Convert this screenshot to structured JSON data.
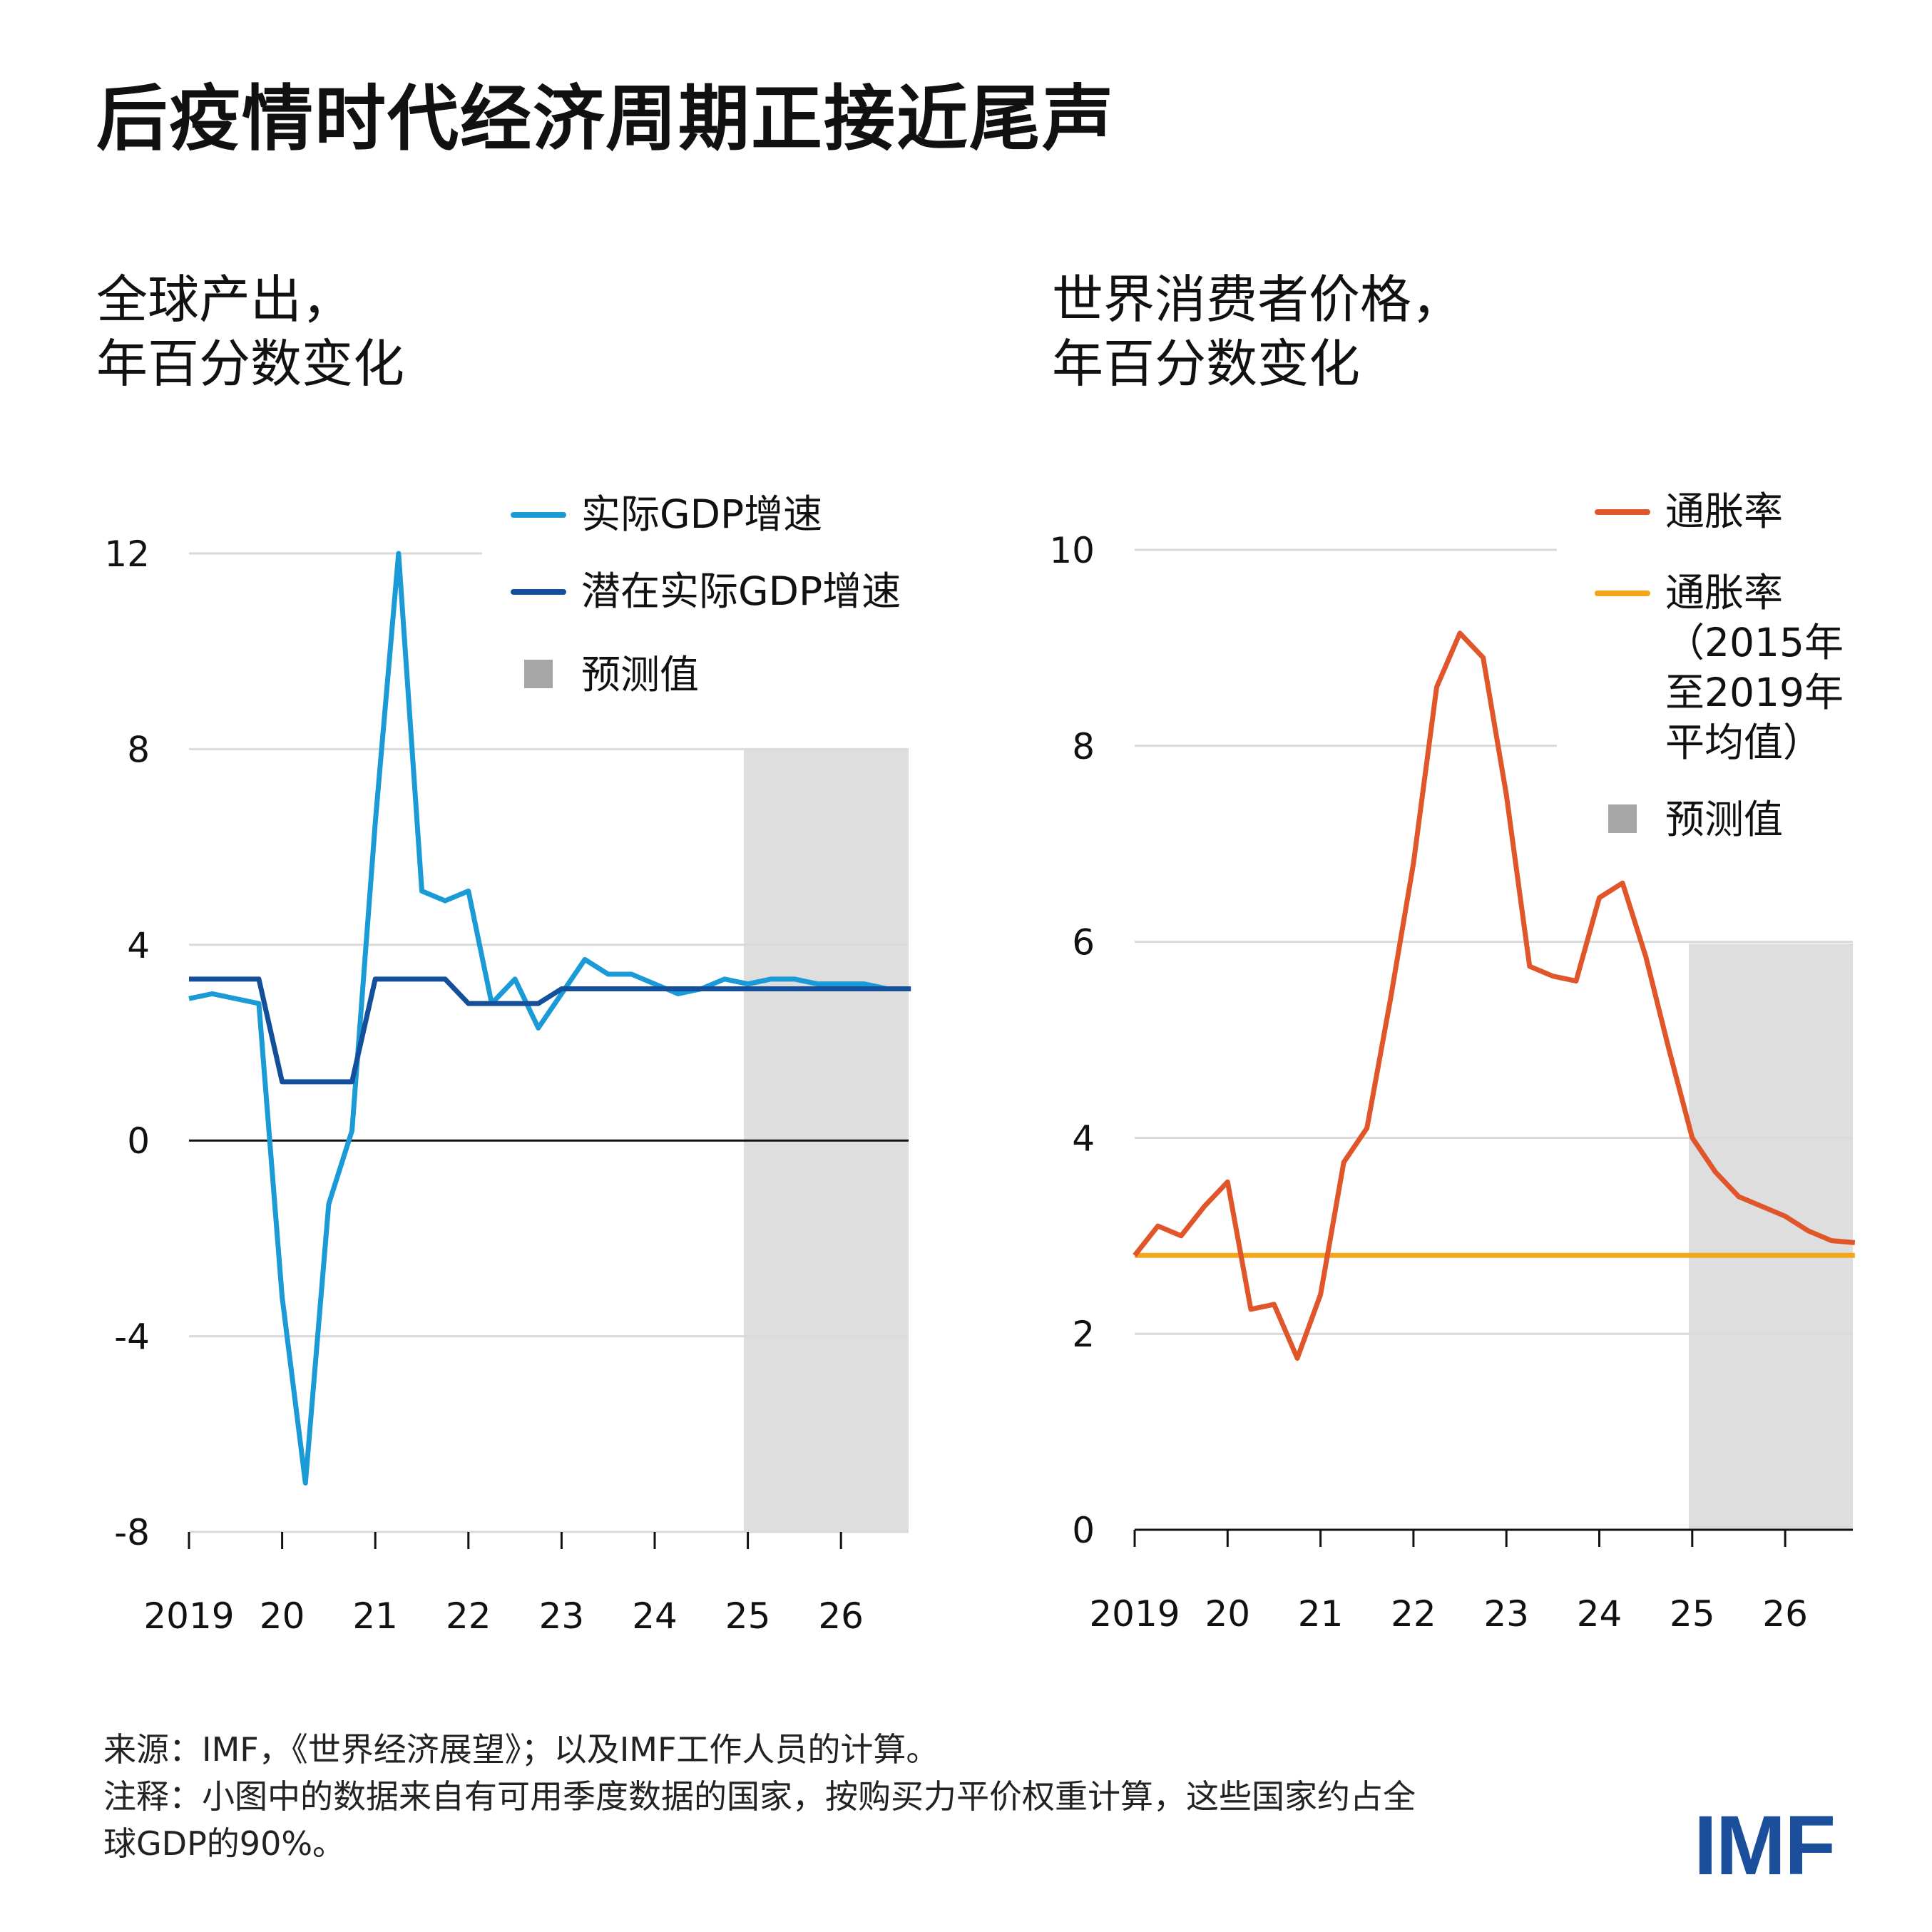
{
  "title": "后疫情时代经济周期正接近尾声",
  "colors": {
    "actual_gdp": "#1a9ad6",
    "potential_gdp": "#134f9a",
    "inflation": "#e0562a",
    "inflation_avg": "#f2a71b",
    "forecast": "#dedede",
    "forecast_legend": "#a6a6a6",
    "grid": "#d9d9d9",
    "logo": "#1b4f9c"
  },
  "chart_data": [
    {
      "type": "line",
      "title": "全球产出，\n年百分数变化",
      "xlabel": "",
      "ylabel": "",
      "x_tick_labels": [
        "2019",
        "20",
        "21",
        "22",
        "23",
        "24",
        "25",
        "26"
      ],
      "y_ticks": [
        12,
        8,
        4,
        0,
        -4,
        -8
      ],
      "y_tick_labels": [
        "12",
        "8",
        "4",
        "0",
        "-4",
        "-8"
      ],
      "ylim": [
        -8,
        12
      ],
      "x_frequency": "quarterly",
      "x_start": "2019Q1",
      "x_end": "2026Q4",
      "forecast_start": "2025Q1",
      "grid": true,
      "legend_position": "top-right",
      "forecast_label": "预测值",
      "series": [
        {
          "name": "实际GDP增速",
          "color_key": "actual_gdp",
          "values": [
            2.9,
            3.0,
            2.9,
            2.8,
            -3.2,
            -7.0,
            -1.3,
            0.2,
            6.5,
            12.0,
            5.1,
            4.9,
            5.1,
            2.8,
            3.3,
            2.3,
            3.0,
            3.7,
            3.4,
            3.4,
            3.2,
            3.0,
            3.1,
            3.3,
            3.2,
            3.3,
            3.3,
            3.2,
            3.2,
            3.2,
            3.1,
            3.1
          ]
        },
        {
          "name": "潜在实际GDP增速",
          "color_key": "potential_gdp",
          "values": [
            3.3,
            3.3,
            3.3,
            3.3,
            1.2,
            1.2,
            1.2,
            1.2,
            3.3,
            3.3,
            3.3,
            3.3,
            2.8,
            2.8,
            2.8,
            2.8,
            3.1,
            3.1,
            3.1,
            3.1,
            3.1,
            3.1,
            3.1,
            3.1,
            3.1,
            3.1,
            3.1,
            3.1,
            3.1,
            3.1,
            3.1,
            3.1
          ]
        }
      ]
    },
    {
      "type": "line",
      "title": "世界消费者价格，\n年百分数变化",
      "xlabel": "",
      "ylabel": "",
      "x_tick_labels": [
        "2019",
        "20",
        "21",
        "22",
        "23",
        "24",
        "25",
        "26"
      ],
      "y_ticks": [
        10,
        8,
        6,
        4,
        2,
        0
      ],
      "y_tick_labels": [
        "10",
        "8",
        "6",
        "4",
        "2",
        "0"
      ],
      "ylim": [
        0,
        10
      ],
      "x_frequency": "quarterly",
      "x_start": "2019Q1",
      "x_end": "2026Q4",
      "forecast_start": "2025Q1",
      "grid": true,
      "legend_position": "top-right",
      "forecast_label": "预测值",
      "series": [
        {
          "name": "通胀率",
          "color_key": "inflation",
          "values": [
            2.8,
            3.1,
            3.0,
            3.3,
            3.55,
            2.25,
            2.3,
            1.75,
            2.4,
            3.75,
            4.1,
            5.4,
            6.8,
            8.6,
            9.15,
            8.9,
            7.5,
            5.75,
            5.65,
            5.6,
            6.45,
            6.6,
            5.85,
            4.9,
            4.0,
            3.65,
            3.4,
            3.3,
            3.2,
            3.05,
            2.95,
            2.93
          ]
        },
        {
          "name": "通胀率\n（2015年\n至2019年\n平均值）",
          "color_key": "inflation_avg",
          "values": [
            2.8,
            2.8,
            2.8,
            2.8,
            2.8,
            2.8,
            2.8,
            2.8,
            2.8,
            2.8,
            2.8,
            2.8,
            2.8,
            2.8,
            2.8,
            2.8,
            2.8,
            2.8,
            2.8,
            2.8,
            2.8,
            2.8,
            2.8,
            2.8,
            2.8,
            2.8,
            2.8,
            2.8,
            2.8,
            2.8,
            2.8,
            2.8
          ]
        }
      ]
    }
  ],
  "footer": {
    "source": "来源：IMF，《世界经济展望》；以及IMF工作人员的计算。",
    "note": "注释：小图中的数据来自有可用季度数据的国家，按购买力平价权重计算，这些国家约占全\n球GDP的90%。"
  },
  "logo": "IMF"
}
